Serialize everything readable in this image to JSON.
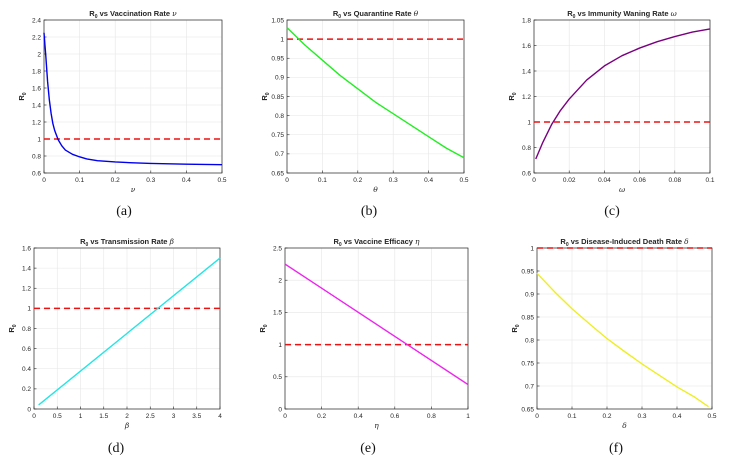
{
  "chart_data": [
    {
      "type": "line",
      "title": "R0 vs Vaccination Rate ν",
      "title_main": "R",
      "title_sub": "0",
      "title_rest": " vs Vaccination Rate ",
      "title_sym": "ν",
      "xlabel": "ν",
      "ylabel_main": "R",
      "ylabel_sub": "0",
      "caption": "(a)",
      "xlim": [
        0,
        0.5
      ],
      "ylim": [
        0.6,
        2.4
      ],
      "xticks": [
        0,
        0.1,
        0.2,
        0.3,
        0.4,
        0.5
      ],
      "xtick_labels": [
        "0",
        "0.1",
        "0.2",
        "0.3",
        "0.4",
        "0.5"
      ],
      "yticks": [
        0.6,
        0.8,
        1,
        1.2,
        1.4,
        1.6,
        1.8,
        2,
        2.2,
        2.4
      ],
      "ytick_labels": [
        "0.6",
        "0.8",
        "1",
        "1.2",
        "1.4",
        "1.6",
        "1.8",
        "2",
        "2.2",
        "2.4"
      ],
      "color": "#0000ee",
      "threshold": 1,
      "x": [
        0,
        0.005,
        0.01,
        0.015,
        0.02,
        0.025,
        0.03,
        0.04,
        0.05,
        0.06,
        0.08,
        0.1,
        0.12,
        0.15,
        0.2,
        0.25,
        0.3,
        0.35,
        0.4,
        0.45,
        0.5
      ],
      "y": [
        2.25,
        1.98,
        1.68,
        1.46,
        1.3,
        1.18,
        1.1,
        0.99,
        0.92,
        0.87,
        0.82,
        0.79,
        0.765,
        0.745,
        0.73,
        0.72,
        0.713,
        0.708,
        0.704,
        0.701,
        0.698
      ]
    },
    {
      "type": "line",
      "title": "R0 vs Quarantine Rate θ",
      "title_main": "R",
      "title_sub": "0",
      "title_rest": " vs Quarantine Rate ",
      "title_sym": "θ",
      "xlabel": "θ",
      "ylabel_main": "R",
      "ylabel_sub": "0",
      "caption": "(b)",
      "xlim": [
        0,
        0.5
      ],
      "ylim": [
        0.65,
        1.05
      ],
      "xticks": [
        0,
        0.1,
        0.2,
        0.3,
        0.4,
        0.5
      ],
      "xtick_labels": [
        "0",
        "0.1",
        "0.2",
        "0.3",
        "0.4",
        "0.5"
      ],
      "yticks": [
        0.65,
        0.7,
        0.75,
        0.8,
        0.85,
        0.9,
        0.95,
        1,
        1.05
      ],
      "ytick_labels": [
        "0.65",
        "0.7",
        "0.75",
        "0.8",
        "0.85",
        "0.9",
        "0.95",
        "1",
        "1.05"
      ],
      "color": "#22ee22",
      "threshold": 1,
      "x": [
        0,
        0.05,
        0.1,
        0.15,
        0.2,
        0.25,
        0.3,
        0.35,
        0.4,
        0.45,
        0.5
      ],
      "y": [
        1.03,
        0.985,
        0.945,
        0.905,
        0.87,
        0.835,
        0.805,
        0.775,
        0.745,
        0.715,
        0.69
      ]
    },
    {
      "type": "line",
      "title": "R0 vs Immunity Waning Rate ω",
      "title_main": "R",
      "title_sub": "0",
      "title_rest": " vs Immunity Waning Rate ",
      "title_sym": "ω",
      "xlabel": "ω",
      "ylabel_main": "R",
      "ylabel_sub": "0",
      "caption": "(c)",
      "xlim": [
        0,
        0.1
      ],
      "ylim": [
        0.6,
        1.8
      ],
      "xticks": [
        0,
        0.02,
        0.04,
        0.06,
        0.08,
        0.1
      ],
      "xtick_labels": [
        "0",
        "0.02",
        "0.04",
        "0.06",
        "0.08",
        "0.1"
      ],
      "yticks": [
        0.6,
        0.8,
        1,
        1.2,
        1.4,
        1.6,
        1.8
      ],
      "ytick_labels": [
        "0.6",
        "0.8",
        "1",
        "1.2",
        "1.4",
        "1.6",
        "1.8"
      ],
      "color": "#7a0080",
      "threshold": 1,
      "x": [
        0.001,
        0.005,
        0.01,
        0.015,
        0.02,
        0.03,
        0.04,
        0.05,
        0.06,
        0.07,
        0.08,
        0.09,
        0.1
      ],
      "y": [
        0.71,
        0.84,
        0.98,
        1.09,
        1.18,
        1.33,
        1.44,
        1.52,
        1.58,
        1.63,
        1.67,
        1.705,
        1.73
      ]
    },
    {
      "type": "line",
      "title": "R0 vs Transmission Rate β",
      "title_main": "R",
      "title_sub": "0",
      "title_rest": " vs Transmission Rate ",
      "title_sym": "β",
      "xlabel": "β",
      "ylabel_main": "R",
      "ylabel_sub": "0",
      "caption": "(d)",
      "xlim": [
        0,
        4
      ],
      "ylim": [
        0,
        1.6
      ],
      "xticks": [
        0,
        0.5,
        1,
        1.5,
        2,
        2.5,
        3,
        3.5,
        4
      ],
      "xtick_labels": [
        "0",
        "0.5",
        "1",
        "1.5",
        "2",
        "2.5",
        "3",
        "3.5",
        "4"
      ],
      "yticks": [
        0,
        0.2,
        0.4,
        0.6,
        0.8,
        1,
        1.2,
        1.4,
        1.6
      ],
      "ytick_labels": [
        "0",
        "0.2",
        "0.4",
        "0.6",
        "0.8",
        "1",
        "1.2",
        "1.4",
        "1.6"
      ],
      "color": "#22e5e5",
      "threshold": 1,
      "x": [
        0.1,
        4
      ],
      "y": [
        0.04,
        1.5
      ]
    },
    {
      "type": "line",
      "title": "R0 vs Vaccine Efficacy η",
      "title_main": "R",
      "title_sub": "0",
      "title_rest": " vs Vaccine Efficacy ",
      "title_sym": "η",
      "xlabel": "η",
      "ylabel_main": "R",
      "ylabel_sub": "0",
      "caption": "(e)",
      "xlim": [
        0,
        1
      ],
      "ylim": [
        0,
        2.5
      ],
      "xticks": [
        0,
        0.2,
        0.4,
        0.6,
        0.8,
        1
      ],
      "xtick_labels": [
        "0",
        "0.2",
        "0.4",
        "0.6",
        "0.8",
        "1"
      ],
      "yticks": [
        0,
        0.5,
        1,
        1.5,
        2,
        2.5
      ],
      "ytick_labels": [
        "0",
        "0.5",
        "1",
        "1.5",
        "2",
        "2.5"
      ],
      "color": "#ee22ee",
      "threshold": 1,
      "x": [
        0,
        1
      ],
      "y": [
        2.25,
        0.38
      ]
    },
    {
      "type": "line",
      "title": "R0 vs Disease-Induced Death Rate δ",
      "title_main": "R",
      "title_sub": "0",
      "title_rest": " vs Disease-Induced Death Rate ",
      "title_sym": "δ",
      "xlabel": "δ",
      "ylabel_main": "R",
      "ylabel_sub": "0",
      "caption": "(f)",
      "xlim": [
        0,
        0.5
      ],
      "ylim": [
        0.65,
        1
      ],
      "xticks": [
        0,
        0.1,
        0.2,
        0.3,
        0.4,
        0.5
      ],
      "xtick_labels": [
        "0",
        "0.1",
        "0.2",
        "0.3",
        "0.4",
        "0.5"
      ],
      "yticks": [
        0.65,
        0.7,
        0.75,
        0.8,
        0.85,
        0.9,
        0.95,
        1
      ],
      "ytick_labels": [
        "0.65",
        "0.7",
        "0.75",
        "0.8",
        "0.85",
        "0.9",
        "0.95",
        "1"
      ],
      "color": "#eeee22",
      "threshold": 1,
      "x": [
        0,
        0.05,
        0.1,
        0.15,
        0.2,
        0.25,
        0.3,
        0.35,
        0.4,
        0.45,
        0.49
      ],
      "y": [
        0.945,
        0.905,
        0.868,
        0.835,
        0.803,
        0.775,
        0.748,
        0.723,
        0.698,
        0.676,
        0.655
      ]
    }
  ]
}
